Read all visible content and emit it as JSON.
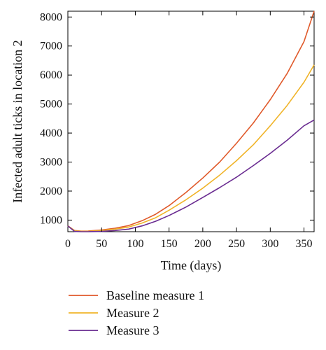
{
  "chart_data": {
    "type": "line",
    "xlabel": "Time (days)",
    "ylabel": "Infected adult ticks in location 2",
    "xlim": [
      0,
      365
    ],
    "ylim": [
      600,
      8200
    ],
    "xticks": [
      0,
      50,
      100,
      150,
      200,
      250,
      300,
      350
    ],
    "yticks": [
      1000,
      2000,
      3000,
      4000,
      5000,
      6000,
      7000,
      8000
    ],
    "grid": false,
    "legend_position": "bottom",
    "series": [
      {
        "name": "Baseline measure 1",
        "color": "#e05a2b",
        "x": [
          0,
          10,
          20,
          30,
          50,
          70,
          90,
          110,
          130,
          150,
          175,
          200,
          225,
          250,
          275,
          300,
          325,
          350,
          365
        ],
        "y": [
          800,
          640,
          620,
          625,
          660,
          720,
          810,
          980,
          1200,
          1500,
          1950,
          2450,
          3000,
          3650,
          4350,
          5150,
          6050,
          7150,
          8200
        ]
      },
      {
        "name": "Measure 2",
        "color": "#f0b429",
        "x": [
          0,
          10,
          20,
          30,
          50,
          70,
          90,
          110,
          130,
          150,
          175,
          200,
          225,
          250,
          275,
          300,
          325,
          350,
          365
        ],
        "y": [
          800,
          630,
          610,
          610,
          640,
          690,
          760,
          900,
          1080,
          1340,
          1700,
          2100,
          2550,
          3050,
          3600,
          4250,
          4950,
          5750,
          6350
        ]
      },
      {
        "name": "Measure 3",
        "color": "#6a2c91",
        "x": [
          0,
          10,
          20,
          30,
          50,
          70,
          90,
          110,
          130,
          150,
          175,
          200,
          225,
          250,
          275,
          300,
          325,
          350,
          365
        ],
        "y": [
          800,
          610,
          600,
          600,
          610,
          640,
          690,
          800,
          960,
          1160,
          1450,
          1780,
          2120,
          2480,
          2880,
          3300,
          3750,
          4250,
          4450
        ]
      }
    ]
  }
}
